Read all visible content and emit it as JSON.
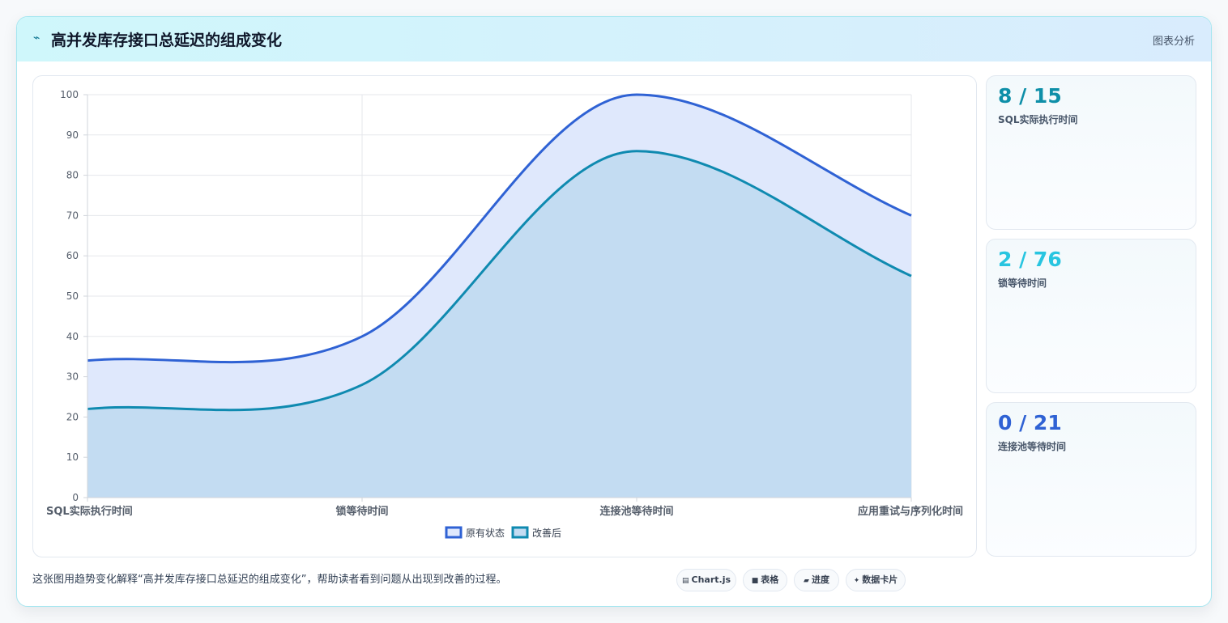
{
  "header": {
    "icon": "sparkle-icon",
    "title": "高并发库存接口总延迟的组成变化",
    "tag": "图表分析"
  },
  "chart_data": {
    "type": "area",
    "categories": [
      "SQL实际执行时间",
      "锁等待时间",
      "连接池等待时间",
      "应用重试与序列化时间"
    ],
    "series": [
      {
        "name": "原有状态",
        "values": [
          34,
          40,
          100,
          70
        ],
        "color": "#2f62d4",
        "fill": "#dfe8fc"
      },
      {
        "name": "改善后",
        "values": [
          22,
          28,
          86,
          55
        ],
        "color": "#0f8ab0",
        "fill": "#c3dcf2"
      }
    ],
    "ylim": [
      0,
      100
    ],
    "yticks": [
      0,
      10,
      20,
      30,
      40,
      50,
      60,
      70,
      80,
      90,
      100
    ],
    "grid": true,
    "legend": "bottom"
  },
  "stats": [
    {
      "value": "8 / 15",
      "label": "SQL实际执行时间",
      "color": "#0e8fa8"
    },
    {
      "value": "2 / 76",
      "label": "锁等待时间",
      "color": "#28c5e0"
    },
    {
      "value": "0 / 21",
      "label": "连接池等待时间",
      "color": "#2f62d4"
    }
  ],
  "footer": {
    "note": "这张图用趋势变化解释“高并发库存接口总延迟的组成变化”，帮助读者看到问题从出现到改善的过程。",
    "chips": [
      {
        "icon": "chart-icon",
        "label": "Chart.js"
      },
      {
        "icon": "table-icon",
        "label": "表格"
      },
      {
        "icon": "progress-icon",
        "label": "进度"
      },
      {
        "icon": "card-icon",
        "label": "数据卡片"
      }
    ]
  }
}
